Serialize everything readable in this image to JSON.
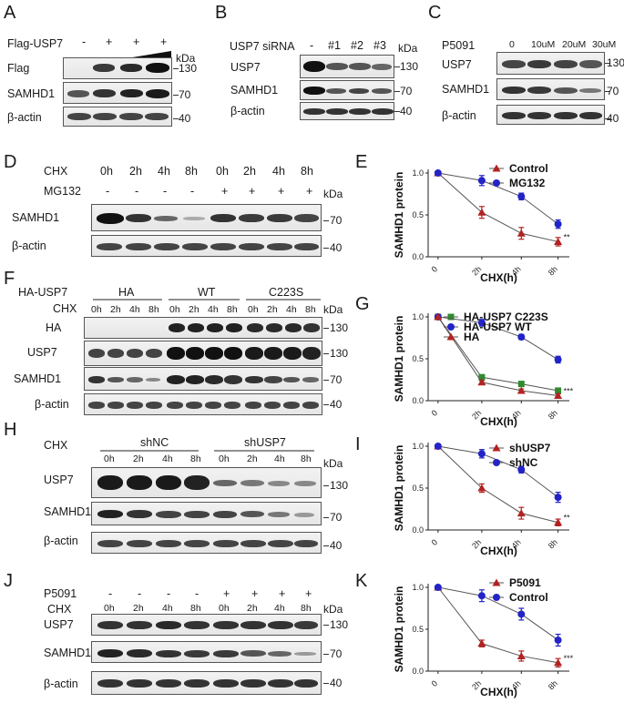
{
  "panels": {
    "A": {
      "letter": "A",
      "treatment": "Flag-USP7",
      "lanes": [
        "-",
        "+",
        "+",
        "+"
      ],
      "rows": [
        "Flag",
        "SAMHD1",
        "β-actin"
      ],
      "kda_header": "kDa",
      "markers": [
        "130",
        "70",
        "40"
      ]
    },
    "B": {
      "letter": "B",
      "treatment": "USP7 siRNA",
      "lanes": [
        "-",
        "#1",
        "#2",
        "#3"
      ],
      "rows": [
        "USP7",
        "SAMHD1",
        "β-actin"
      ],
      "kda_header": "kDa",
      "markers": [
        "130",
        "70",
        "40"
      ]
    },
    "C": {
      "letter": "C",
      "treatment": "P5091",
      "lanes": [
        "0",
        "10uM",
        "20uM",
        "30uM"
      ],
      "rows": [
        "USP7",
        "SAMHD1",
        "β-actin"
      ],
      "markers": [
        "130",
        "70",
        "40"
      ]
    },
    "D": {
      "letter": "D",
      "row1_label": "CHX",
      "row1": [
        "0h",
        "2h",
        "4h",
        "8h",
        "0h",
        "2h",
        "4h",
        "8h"
      ],
      "row2_label": "MG132",
      "row2": [
        "-",
        "-",
        "-",
        "-",
        "+",
        "+",
        "+",
        "+"
      ],
      "rows": [
        "SAMHD1",
        "β-actin"
      ],
      "kda_header": "kDa",
      "markers": [
        "70",
        "40"
      ]
    },
    "F": {
      "letter": "F",
      "treatment": "HA-USP7",
      "groups": [
        "HA",
        "WT",
        "C223S"
      ],
      "row_label": "CHX",
      "lanes": [
        "0h",
        "2h",
        "4h",
        "8h",
        "0h",
        "2h",
        "4h",
        "8h",
        "0h",
        "2h",
        "4h",
        "8h"
      ],
      "rows": [
        "HA",
        "USP7",
        "SAMHD1",
        "β-actin"
      ],
      "kda_header": "kDa",
      "markers": [
        "130",
        "130",
        "70",
        "40"
      ]
    },
    "H": {
      "letter": "H",
      "row_label": "CHX",
      "groups": [
        "shNC",
        "shUSP7"
      ],
      "lanes": [
        "0h",
        "2h",
        "4h",
        "8h",
        "0h",
        "2h",
        "4h",
        "8h"
      ],
      "rows": [
        "USP7",
        "SAMHD1",
        "β-actin"
      ],
      "kda_header": "kDa",
      "markers": [
        "130",
        "70",
        "40"
      ]
    },
    "J": {
      "letter": "J",
      "row1_label": "P5091",
      "row1": [
        "-",
        "-",
        "-",
        "-",
        "+",
        "+",
        "+",
        "+"
      ],
      "row2_label": "CHX",
      "row2": [
        "0h",
        "2h",
        "4h",
        "8h",
        "0h",
        "2h",
        "4h",
        "8h"
      ],
      "rows": [
        "USP7",
        "SAMHD1",
        "β-actin"
      ],
      "kda_header": "kDa",
      "markers": [
        "130",
        "70",
        "40"
      ]
    }
  },
  "chart_data": [
    {
      "letter": "E",
      "type": "line",
      "xlabel": "CHX(h)",
      "ylabel": "SAMHD1 protein",
      "categories": [
        "0",
        "2h",
        "4h",
        "8h"
      ],
      "ylim": [
        0,
        1.0
      ],
      "yticks": [
        "0.0",
        "0.5",
        "1.0"
      ],
      "significance": "**",
      "legend_placement": "top-right",
      "series": [
        {
          "name": "Control",
          "color": "#b22222",
          "marker": "triangle",
          "values": [
            1.0,
            0.53,
            0.28,
            0.18
          ],
          "errors": [
            0,
            0.07,
            0.07,
            0.05
          ]
        },
        {
          "name": "MG132",
          "color": "#2323c8",
          "marker": "circle",
          "values": [
            1.0,
            0.91,
            0.72,
            0.39
          ],
          "errors": [
            0,
            0.06,
            0.04,
            0.05
          ]
        }
      ]
    },
    {
      "letter": "G",
      "type": "line",
      "xlabel": "CHX(h)",
      "ylabel": "SAMHD1 protein",
      "categories": [
        "0",
        "2h",
        "4h",
        "8h"
      ],
      "ylim": [
        0,
        1.0
      ],
      "yticks": [
        "0.0",
        "0.5",
        "1.0"
      ],
      "significance": "***",
      "legend_placement": "top-right",
      "series": [
        {
          "name": "HA-USP7 C223S",
          "color": "#2e8b2e",
          "marker": "square",
          "values": [
            1.0,
            0.28,
            0.2,
            0.12
          ],
          "errors": [
            0,
            0.03,
            0.02,
            0.03
          ]
        },
        {
          "name": "HA-USP7 WT",
          "color": "#2323c8",
          "marker": "circle",
          "values": [
            1.0,
            0.93,
            0.76,
            0.49
          ],
          "errors": [
            0,
            0.04,
            0.03,
            0.04
          ]
        },
        {
          "name": "HA",
          "color": "#b22222",
          "marker": "triangle",
          "values": [
            1.0,
            0.22,
            0.12,
            0.06
          ],
          "errors": [
            0,
            0.02,
            0.02,
            0.02
          ]
        }
      ]
    },
    {
      "letter": "I",
      "type": "line",
      "xlabel": "CHX(h)",
      "ylabel": "SAMHD1 protein",
      "categories": [
        "0",
        "2h",
        "4h",
        "8h"
      ],
      "ylim": [
        0,
        1.0
      ],
      "yticks": [
        "0.0",
        "0.5",
        "1.0"
      ],
      "significance": "**",
      "legend_placement": "top-right",
      "series": [
        {
          "name": "shUSP7",
          "color": "#b22222",
          "marker": "triangle",
          "values": [
            1.0,
            0.5,
            0.2,
            0.09
          ],
          "errors": [
            0,
            0.05,
            0.07,
            0.04
          ]
        },
        {
          "name": "shNC",
          "color": "#2323c8",
          "marker": "circle",
          "values": [
            1.0,
            0.91,
            0.72,
            0.39
          ],
          "errors": [
            0,
            0.05,
            0.04,
            0.06
          ]
        }
      ]
    },
    {
      "letter": "K",
      "type": "line",
      "xlabel": "CHX(h)",
      "ylabel": "SAMHD1 protein",
      "categories": [
        "0",
        "2h",
        "4h",
        "8h"
      ],
      "ylim": [
        0,
        1.0
      ],
      "yticks": [
        "0.0",
        "0.5",
        "1.0"
      ],
      "significance": "***",
      "legend_placement": "top-right",
      "series": [
        {
          "name": "P5091",
          "color": "#b22222",
          "marker": "triangle",
          "values": [
            1.0,
            0.33,
            0.18,
            0.1
          ],
          "errors": [
            0,
            0.04,
            0.06,
            0.05
          ]
        },
        {
          "name": "Control",
          "color": "#2323c8",
          "marker": "circle",
          "values": [
            1.0,
            0.9,
            0.68,
            0.37
          ],
          "errors": [
            0,
            0.07,
            0.07,
            0.07
          ]
        }
      ]
    }
  ]
}
